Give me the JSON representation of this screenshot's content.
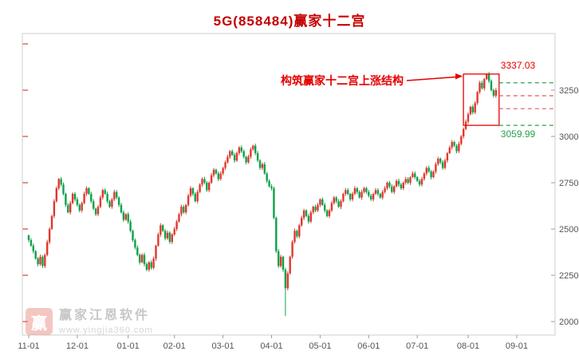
{
  "title": "5G(858484)赢家十二宫",
  "annotation": {
    "label": "构筑赢家十二宫上涨结构",
    "high_label": "3337.03",
    "low_label": "3059.99"
  },
  "watermark": {
    "logo_char": "赢",
    "brand": "赢家江恩软件",
    "url": "www.yingjia360.com"
  },
  "colors": {
    "title": "#c40000",
    "up": "#e0382e",
    "down": "#0fa04a",
    "annotation_red": "#e60000",
    "level_green": "#2aa24d",
    "level_red": "#e05b5b",
    "axis_text": "#555555",
    "border": "#cccccc",
    "tick": "#999999",
    "left_tick_red": "#e05b52",
    "watermark_text": "#b5b5b5",
    "watermark_url": "#c8c8c8"
  },
  "chart_data": {
    "type": "candlestick",
    "title": "5G(858484)赢家十二宫",
    "ylim": [
      1927,
      3556
    ],
    "y_ticks": [
      2000,
      2250,
      2500,
      2750,
      3000,
      3250
    ],
    "x_ticks": [
      {
        "label": "11-01",
        "i": 0
      },
      {
        "label": "12-01",
        "i": 21
      },
      {
        "label": "01-01",
        "i": 43
      },
      {
        "label": "02-01",
        "i": 63
      },
      {
        "label": "03-01",
        "i": 84
      },
      {
        "label": "04-01",
        "i": 105
      },
      {
        "label": "05-01",
        "i": 126
      },
      {
        "label": "06-01",
        "i": 147
      },
      {
        "label": "07-01",
        "i": 168
      },
      {
        "label": "08-01",
        "i": 190
      },
      {
        "label": "09-01",
        "i": 211
      }
    ],
    "first_open": 2465,
    "closes": [
      2440,
      2410,
      2380,
      2340,
      2310,
      2350,
      2300,
      2360,
      2430,
      2500,
      2570,
      2650,
      2720,
      2770,
      2740,
      2690,
      2630,
      2590,
      2640,
      2690,
      2660,
      2630,
      2600,
      2640,
      2690,
      2720,
      2690,
      2650,
      2610,
      2580,
      2620,
      2670,
      2710,
      2690,
      2650,
      2620,
      2660,
      2700,
      2670,
      2630,
      2590,
      2550,
      2580,
      2540,
      2490,
      2440,
      2400,
      2360,
      2320,
      2360,
      2310,
      2280,
      2320,
      2290,
      2340,
      2410,
      2470,
      2520,
      2490,
      2450,
      2480,
      2430,
      2470,
      2500,
      2540,
      2580,
      2620,
      2590,
      2630,
      2680,
      2720,
      2690,
      2650,
      2700,
      2740,
      2770,
      2750,
      2710,
      2750,
      2790,
      2820,
      2800,
      2770,
      2800,
      2830,
      2860,
      2890,
      2920,
      2900,
      2870,
      2910,
      2940,
      2920,
      2890,
      2860,
      2890,
      2930,
      2950,
      2910,
      2870,
      2830,
      2850,
      2800,
      2760,
      2730,
      2720,
      2560,
      2380,
      2300,
      2350,
      2280,
      2180,
      2260,
      2350,
      2430,
      2490,
      2460,
      2520,
      2560,
      2600,
      2570,
      2540,
      2590,
      2620,
      2600,
      2630,
      2660,
      2630,
      2600,
      2570,
      2600,
      2640,
      2670,
      2650,
      2620,
      2650,
      2690,
      2710,
      2690,
      2660,
      2690,
      2720,
      2700,
      2670,
      2700,
      2720,
      2700,
      2680,
      2660,
      2690,
      2710,
      2690,
      2670,
      2700,
      2720,
      2750,
      2730,
      2700,
      2730,
      2760,
      2740,
      2720,
      2750,
      2770,
      2750,
      2780,
      2800,
      2780,
      2760,
      2740,
      2770,
      2800,
      2830,
      2810,
      2780,
      2810,
      2850,
      2880,
      2860,
      2830,
      2870,
      2910,
      2940,
      2970,
      2950,
      2920,
      2960,
      3000,
      3040,
      3080,
      3120,
      3160,
      3130,
      3180,
      3240,
      3290,
      3260,
      3310,
      3337,
      3300,
      3250,
      3220,
      3250
    ],
    "wick_overrides": {
      "111": {
        "low": 2030
      },
      "198": {
        "high": 3337.03
      }
    },
    "box": {
      "start_index": 189,
      "end_index": 202,
      "top": 3337.03,
      "bottom": 3059.99
    },
    "dashed_levels": [
      {
        "value": 3290,
        "color": "green"
      },
      {
        "value": 3220,
        "color": "red"
      },
      {
        "value": 3150,
        "color": "red"
      },
      {
        "value": 3059.99,
        "color": "green"
      }
    ]
  }
}
